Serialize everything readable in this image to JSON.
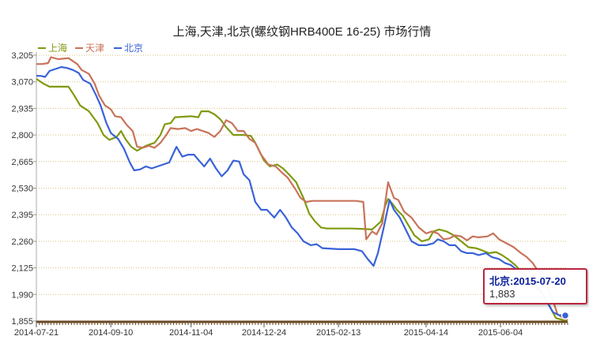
{
  "chart_data": {
    "type": "line",
    "title": "上海,天津,北京(螺纹钢HRB400E 16-25) 市场行情",
    "xlabel": "",
    "ylabel": "",
    "x_tick_labels": [
      "2014-07-21",
      "2014-09-10",
      "2014-11-04",
      "2014-12-24",
      "2015-02-13",
      "2015-04-14",
      "2015-06-04"
    ],
    "x_range": [
      "2014-07-21",
      "2015-07-20"
    ],
    "y_ticks": [
      1855,
      1990,
      2125,
      2260,
      2395,
      2530,
      2665,
      2800,
      2935,
      3070,
      3205
    ],
    "y_tick_labels": [
      "1,855",
      "1,990",
      "2,125",
      "2,260",
      "2,395",
      "2,530",
      "2,665",
      "2,800",
      "2,935",
      "3,070",
      "3,205"
    ],
    "ylim": [
      1855,
      3205
    ],
    "grid": {
      "horizontal": true,
      "style": "dotted"
    },
    "legend": {
      "position": "top-left",
      "entries": [
        "上海",
        "天津",
        "北京"
      ]
    },
    "colors": {
      "上海": "#7f9a10",
      "天津": "#c8735a",
      "北京": "#3a62d8",
      "tooltip_border": "#b9263f"
    },
    "series": [
      {
        "name": "上海",
        "color": "#7f9a10",
        "points": [
          [
            "2014-07-21",
            3085
          ],
          [
            "2014-07-26",
            3060
          ],
          [
            "2014-07-30",
            3045
          ],
          [
            "2014-08-04",
            3045
          ],
          [
            "2014-08-12",
            3045
          ],
          [
            "2014-08-16",
            3000
          ],
          [
            "2014-08-20",
            2950
          ],
          [
            "2014-08-26",
            2920
          ],
          [
            "2014-09-01",
            2860
          ],
          [
            "2014-09-05",
            2800
          ],
          [
            "2014-09-09",
            2775
          ],
          [
            "2014-09-14",
            2790
          ],
          [
            "2014-09-17",
            2820
          ],
          [
            "2014-09-20",
            2780
          ],
          [
            "2014-09-24",
            2740
          ],
          [
            "2014-09-28",
            2720
          ],
          [
            "2014-10-04",
            2745
          ],
          [
            "2014-10-10",
            2760
          ],
          [
            "2014-10-14",
            2800
          ],
          [
            "2014-10-17",
            2855
          ],
          [
            "2014-10-21",
            2860
          ],
          [
            "2014-10-24",
            2890
          ],
          [
            "2014-11-04",
            2895
          ],
          [
            "2014-11-09",
            2890
          ],
          [
            "2014-11-11",
            2920
          ],
          [
            "2014-11-16",
            2920
          ],
          [
            "2014-11-20",
            2905
          ],
          [
            "2014-11-24",
            2880
          ],
          [
            "2014-11-28",
            2840
          ],
          [
            "2014-12-03",
            2800
          ],
          [
            "2014-12-10",
            2800
          ],
          [
            "2014-12-15",
            2795
          ],
          [
            "2014-12-18",
            2760
          ],
          [
            "2014-12-22",
            2700
          ],
          [
            "2014-12-24",
            2670
          ],
          [
            "2014-12-28",
            2640
          ],
          [
            "2015-01-02",
            2650
          ],
          [
            "2015-01-06",
            2630
          ],
          [
            "2015-01-10",
            2600
          ],
          [
            "2015-01-15",
            2560
          ],
          [
            "2015-01-20",
            2480
          ],
          [
            "2015-01-24",
            2400
          ],
          [
            "2015-01-28",
            2360
          ],
          [
            "2015-02-01",
            2330
          ],
          [
            "2015-02-05",
            2325
          ],
          [
            "2015-02-13",
            2325
          ],
          [
            "2015-02-22",
            2325
          ],
          [
            "2015-03-03",
            2322
          ],
          [
            "2015-03-08",
            2320
          ],
          [
            "2015-03-14",
            2360
          ],
          [
            "2015-03-17",
            2440
          ],
          [
            "2015-03-19",
            2475
          ],
          [
            "2015-03-22",
            2450
          ],
          [
            "2015-03-25",
            2420
          ],
          [
            "2015-03-29",
            2390
          ],
          [
            "2015-04-02",
            2340
          ],
          [
            "2015-04-06",
            2290
          ],
          [
            "2015-04-11",
            2260
          ],
          [
            "2015-04-16",
            2270
          ],
          [
            "2015-04-19",
            2310
          ],
          [
            "2015-04-23",
            2320
          ],
          [
            "2015-04-28",
            2310
          ],
          [
            "2015-05-03",
            2290
          ],
          [
            "2015-05-08",
            2260
          ],
          [
            "2015-05-13",
            2230
          ],
          [
            "2015-05-18",
            2225
          ],
          [
            "2015-05-22",
            2215
          ],
          [
            "2015-05-27",
            2200
          ],
          [
            "2015-06-01",
            2205
          ],
          [
            "2015-06-05",
            2190
          ],
          [
            "2015-06-09",
            2170
          ],
          [
            "2015-06-14",
            2140
          ],
          [
            "2015-06-19",
            2100
          ],
          [
            "2015-06-24",
            2060
          ],
          [
            "2015-06-29",
            2020
          ],
          [
            "2015-07-04",
            1980
          ],
          [
            "2015-07-08",
            1925
          ],
          [
            "2015-07-12",
            1870
          ],
          [
            "2015-07-16",
            1862
          ],
          [
            "2015-07-20",
            1860
          ]
        ]
      },
      {
        "name": "天津",
        "color": "#c8735a",
        "points": [
          [
            "2014-07-21",
            3160
          ],
          [
            "2014-07-25",
            3160
          ],
          [
            "2014-07-29",
            3165
          ],
          [
            "2014-07-31",
            3195
          ],
          [
            "2014-08-05",
            3185
          ],
          [
            "2014-08-12",
            3190
          ],
          [
            "2014-08-18",
            3160
          ],
          [
            "2014-08-21",
            3130
          ],
          [
            "2014-08-26",
            3110
          ],
          [
            "2014-08-30",
            3060
          ],
          [
            "2014-09-02",
            3000
          ],
          [
            "2014-09-06",
            2950
          ],
          [
            "2014-09-10",
            2930
          ],
          [
            "2014-09-13",
            2895
          ],
          [
            "2014-09-17",
            2890
          ],
          [
            "2014-09-21",
            2850
          ],
          [
            "2014-09-25",
            2820
          ],
          [
            "2014-09-28",
            2740
          ],
          [
            "2014-10-02",
            2735
          ],
          [
            "2014-10-06",
            2745
          ],
          [
            "2014-10-10",
            2735
          ],
          [
            "2014-10-14",
            2760
          ],
          [
            "2014-10-18",
            2800
          ],
          [
            "2014-10-21",
            2835
          ],
          [
            "2014-10-26",
            2830
          ],
          [
            "2014-10-31",
            2835
          ],
          [
            "2014-11-04",
            2820
          ],
          [
            "2014-11-08",
            2830
          ],
          [
            "2014-11-12",
            2820
          ],
          [
            "2014-11-16",
            2810
          ],
          [
            "2014-11-20",
            2790
          ],
          [
            "2014-11-24",
            2820
          ],
          [
            "2014-11-28",
            2875
          ],
          [
            "2014-12-02",
            2860
          ],
          [
            "2014-12-06",
            2820
          ],
          [
            "2014-12-10",
            2820
          ],
          [
            "2014-12-14",
            2780
          ],
          [
            "2014-12-18",
            2760
          ],
          [
            "2014-12-22",
            2700
          ],
          [
            "2014-12-27",
            2650
          ],
          [
            "2015-01-01",
            2640
          ],
          [
            "2015-01-05",
            2610
          ],
          [
            "2015-01-09",
            2585
          ],
          [
            "2015-01-14",
            2530
          ],
          [
            "2015-01-18",
            2480
          ],
          [
            "2015-01-22",
            2460
          ],
          [
            "2015-01-26",
            2465
          ],
          [
            "2015-02-01",
            2465
          ],
          [
            "2015-02-13",
            2465
          ],
          [
            "2015-02-25",
            2465
          ],
          [
            "2015-03-02",
            2460
          ],
          [
            "2015-03-04",
            2270
          ],
          [
            "2015-03-08",
            2310
          ],
          [
            "2015-03-11",
            2295
          ],
          [
            "2015-03-15",
            2350
          ],
          [
            "2015-03-19",
            2560
          ],
          [
            "2015-03-23",
            2480
          ],
          [
            "2015-03-26",
            2470
          ],
          [
            "2015-03-30",
            2410
          ],
          [
            "2015-04-04",
            2380
          ],
          [
            "2015-04-09",
            2330
          ],
          [
            "2015-04-14",
            2300
          ],
          [
            "2015-04-18",
            2310
          ],
          [
            "2015-04-22",
            2300
          ],
          [
            "2015-04-26",
            2270
          ],
          [
            "2015-04-30",
            2275
          ],
          [
            "2015-05-04",
            2290
          ],
          [
            "2015-05-08",
            2285
          ],
          [
            "2015-05-12",
            2265
          ],
          [
            "2015-05-16",
            2285
          ],
          [
            "2015-05-20",
            2280
          ],
          [
            "2015-05-26",
            2285
          ],
          [
            "2015-05-30",
            2300
          ],
          [
            "2015-06-03",
            2270
          ],
          [
            "2015-06-08",
            2250
          ],
          [
            "2015-06-13",
            2230
          ],
          [
            "2015-06-18",
            2200
          ],
          [
            "2015-06-22",
            2180
          ],
          [
            "2015-06-26",
            2150
          ],
          [
            "2015-07-01",
            2095
          ],
          [
            "2015-07-05",
            2040
          ],
          [
            "2015-07-09",
            1980
          ],
          [
            "2015-07-13",
            1890
          ],
          [
            "2015-07-17",
            1870
          ],
          [
            "2015-07-20",
            1860
          ]
        ]
      },
      {
        "name": "北京",
        "color": "#3a62d8",
        "points": [
          [
            "2014-07-21",
            3100
          ],
          [
            "2014-07-24",
            3100
          ],
          [
            "2014-07-27",
            3095
          ],
          [
            "2014-07-30",
            3125
          ],
          [
            "2014-08-03",
            3135
          ],
          [
            "2014-08-07",
            3145
          ],
          [
            "2014-08-11",
            3140
          ],
          [
            "2014-08-15",
            3130
          ],
          [
            "2014-08-19",
            3115
          ],
          [
            "2014-08-22",
            3080
          ],
          [
            "2014-08-27",
            3060
          ],
          [
            "2014-08-31",
            3000
          ],
          [
            "2014-09-03",
            2950
          ],
          [
            "2014-09-07",
            2860
          ],
          [
            "2014-09-10",
            2810
          ],
          [
            "2014-09-15",
            2780
          ],
          [
            "2014-09-19",
            2730
          ],
          [
            "2014-09-23",
            2660
          ],
          [
            "2014-09-26",
            2620
          ],
          [
            "2014-09-30",
            2625
          ],
          [
            "2014-10-04",
            2640
          ],
          [
            "2014-10-08",
            2630
          ],
          [
            "2014-10-12",
            2640
          ],
          [
            "2014-10-16",
            2650
          ],
          [
            "2014-10-20",
            2660
          ],
          [
            "2014-10-25",
            2740
          ],
          [
            "2014-10-29",
            2690
          ],
          [
            "2014-11-02",
            2700
          ],
          [
            "2014-11-06",
            2700
          ],
          [
            "2014-11-10",
            2665
          ],
          [
            "2014-11-13",
            2640
          ],
          [
            "2014-11-17",
            2680
          ],
          [
            "2014-11-21",
            2630
          ],
          [
            "2014-11-25",
            2590
          ],
          [
            "2014-11-29",
            2620
          ],
          [
            "2014-12-03",
            2670
          ],
          [
            "2014-12-07",
            2665
          ],
          [
            "2014-12-10",
            2600
          ],
          [
            "2014-12-14",
            2570
          ],
          [
            "2014-12-18",
            2460
          ],
          [
            "2014-12-22",
            2420
          ],
          [
            "2014-12-26",
            2420
          ],
          [
            "2014-12-31",
            2380
          ],
          [
            "2015-01-04",
            2420
          ],
          [
            "2015-01-08",
            2380
          ],
          [
            "2015-01-12",
            2330
          ],
          [
            "2015-01-16",
            2300
          ],
          [
            "2015-01-20",
            2260
          ],
          [
            "2015-01-25",
            2240
          ],
          [
            "2015-01-29",
            2245
          ],
          [
            "2015-02-02",
            2225
          ],
          [
            "2015-02-13",
            2220
          ],
          [
            "2015-02-24",
            2220
          ],
          [
            "2015-03-01",
            2210
          ],
          [
            "2015-03-05",
            2170
          ],
          [
            "2015-03-09",
            2135
          ],
          [
            "2015-03-12",
            2200
          ],
          [
            "2015-03-16",
            2330
          ],
          [
            "2015-03-20",
            2470
          ],
          [
            "2015-03-23",
            2420
          ],
          [
            "2015-03-27",
            2380
          ],
          [
            "2015-03-31",
            2320
          ],
          [
            "2015-04-04",
            2260
          ],
          [
            "2015-04-09",
            2240
          ],
          [
            "2015-04-14",
            2240
          ],
          [
            "2015-04-19",
            2250
          ],
          [
            "2015-04-22",
            2270
          ],
          [
            "2015-04-26",
            2260
          ],
          [
            "2015-04-30",
            2240
          ],
          [
            "2015-05-04",
            2240
          ],
          [
            "2015-05-08",
            2210
          ],
          [
            "2015-05-12",
            2200
          ],
          [
            "2015-05-16",
            2200
          ],
          [
            "2015-05-20",
            2190
          ],
          [
            "2015-05-25",
            2200
          ],
          [
            "2015-05-29",
            2180
          ],
          [
            "2015-06-03",
            2170
          ],
          [
            "2015-06-07",
            2150
          ],
          [
            "2015-06-11",
            2140
          ],
          [
            "2015-06-16",
            2110
          ],
          [
            "2015-06-21",
            2090
          ],
          [
            "2015-06-27",
            2060
          ],
          [
            "2015-07-02",
            2000
          ],
          [
            "2015-07-06",
            1950
          ],
          [
            "2015-07-10",
            1900
          ],
          [
            "2015-07-14",
            1885
          ],
          [
            "2015-07-20",
            1883
          ]
        ]
      }
    ],
    "tooltip": {
      "label": "北京:2015-07-20",
      "value": "1,883",
      "series": "北京",
      "date": "2015-07-20",
      "y": 1883
    }
  }
}
